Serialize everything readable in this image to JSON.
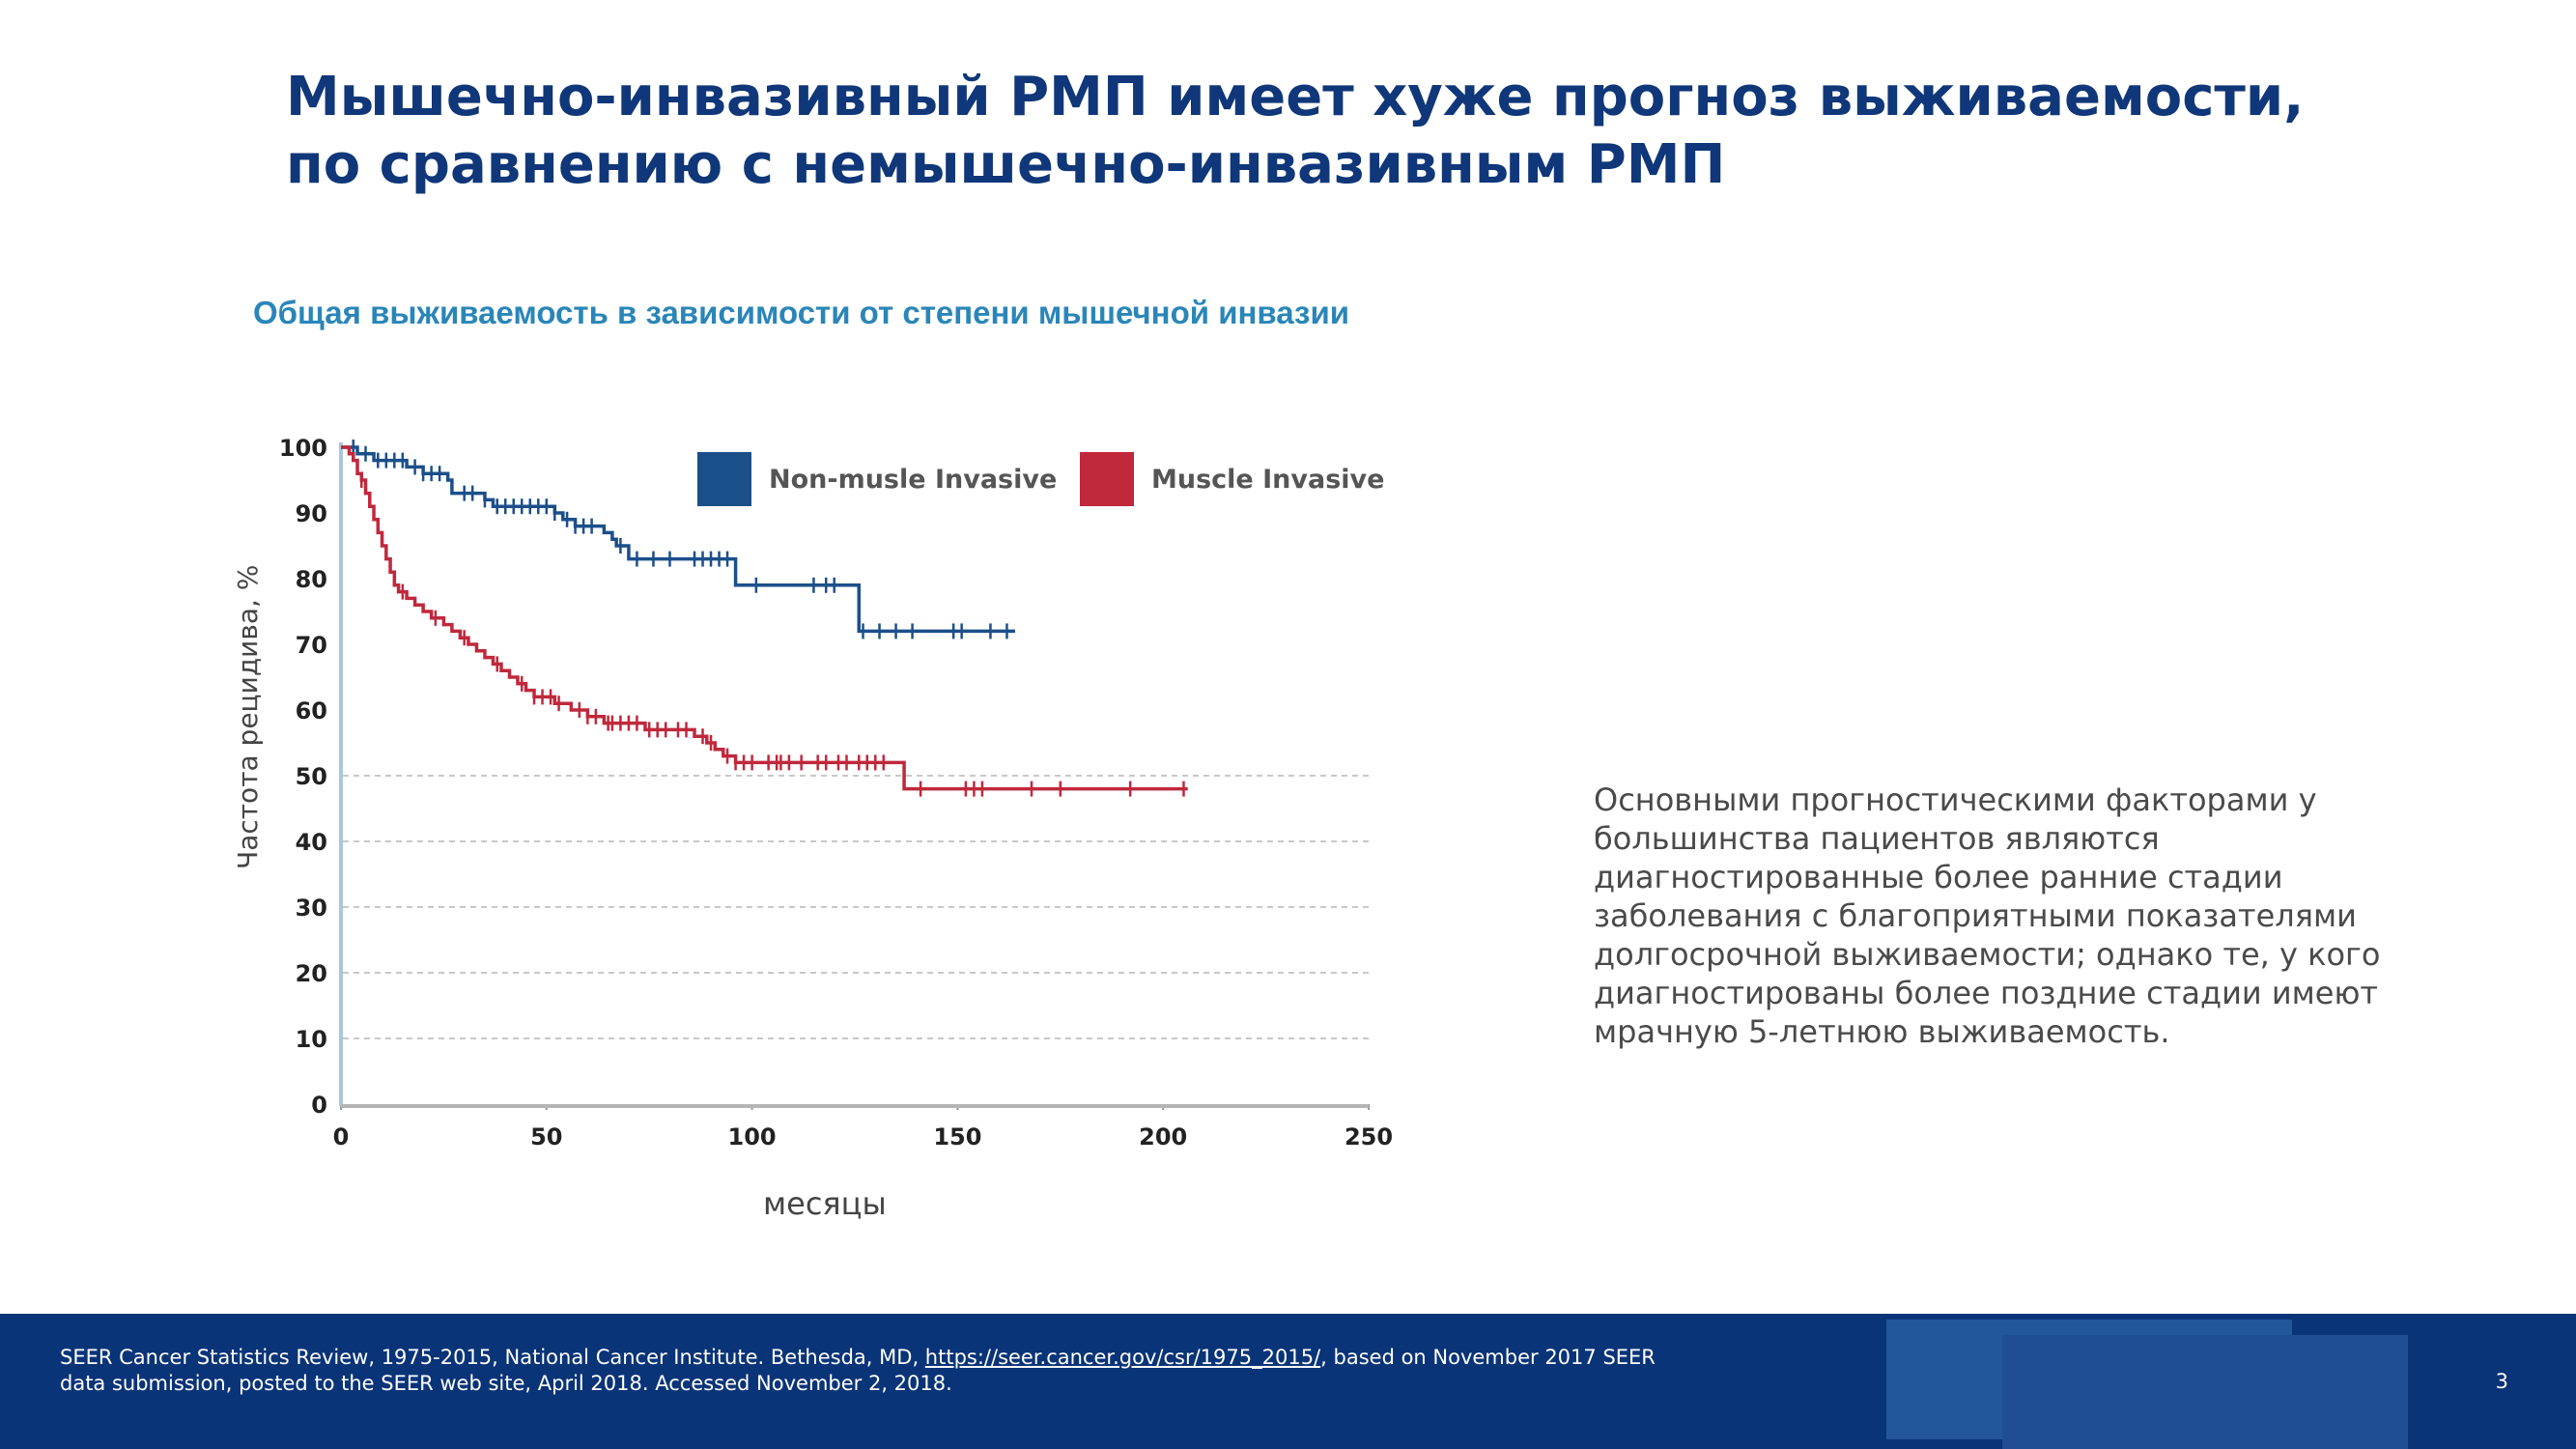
{
  "slide": {
    "title_lines": [
      "Мышечно-инвазивный РМП имеет хуже прогноз выживаемости,",
      "по сравнению с немышечно-инвазивным РМП"
    ],
    "side_text": "Основными прогностическими факторами у большинства пациентов являются диагностированные более ранние стадии заболевания с благоприятными показателями долгосрочной выживаемости; однако те, у кого диагностированы более поздние стадии имеют мрачную 5-летнюю выживаемость.",
    "footnote_pre": "SEER Cancer Statistics Review, 1975-2015, National Cancer Institute. Bethesda, MD, ",
    "footnote_link": "https://seer.cancer.gov/csr/1975_2015/",
    "footnote_post": ", based on November 2017 SEER data submission, posted to the SEER web site, April 2018. Accessed November 2, 2018.",
    "page_number": "3",
    "colors": {
      "title": "#0f3779",
      "chart_title": "#2a86b8",
      "footer": "#0a3478"
    }
  },
  "chart_data": {
    "type": "line",
    "title": "Общая выживаемость в зависимости от степени мышечной инвазии",
    "xlabel": "месяцы",
    "ylabel": "Частота рецидива, %",
    "xlim": [
      0,
      250
    ],
    "ylim": [
      0,
      100
    ],
    "x_ticks": [
      "0",
      "50",
      "100",
      "150",
      "200",
      "250"
    ],
    "y_ticks": [
      "0",
      "10",
      "20",
      "30",
      "40",
      "50",
      "60",
      "70",
      "80",
      "90",
      "100"
    ],
    "grid": "horizontal dashed",
    "legend_position": "top-right",
    "series": [
      {
        "name": "Non-musle Invasive",
        "color": "#1b4f8a",
        "steps": [
          [
            0,
            100
          ],
          [
            4,
            99
          ],
          [
            8,
            98
          ],
          [
            16,
            97
          ],
          [
            20,
            96
          ],
          [
            26,
            95
          ],
          [
            27,
            93
          ],
          [
            35,
            92
          ],
          [
            37,
            91
          ],
          [
            52,
            90
          ],
          [
            54,
            89
          ],
          [
            57,
            88
          ],
          [
            64,
            87
          ],
          [
            66,
            86
          ],
          [
            67,
            85
          ],
          [
            70,
            83
          ],
          [
            96,
            81
          ],
          [
            96,
            79
          ],
          [
            125,
            79
          ],
          [
            126,
            72
          ],
          [
            164,
            72
          ]
        ],
        "censored": [
          3,
          6,
          9,
          11,
          13,
          15,
          18,
          20,
          22,
          24,
          30,
          32,
          35,
          38,
          40,
          42,
          44,
          46,
          48,
          50,
          52,
          55,
          57,
          59,
          61,
          68,
          72,
          76,
          80,
          86,
          88,
          90,
          92,
          94,
          101,
          115,
          118,
          120,
          127,
          131,
          135,
          139,
          149,
          151,
          158,
          162
        ]
      },
      {
        "name": "Muscle Invasive",
        "color": "#c0283c",
        "steps": [
          [
            0,
            100
          ],
          [
            2,
            99
          ],
          [
            3,
            98
          ],
          [
            4,
            96
          ],
          [
            5,
            95
          ],
          [
            6,
            93
          ],
          [
            7,
            91
          ],
          [
            8,
            89
          ],
          [
            9,
            87
          ],
          [
            10,
            85
          ],
          [
            11,
            83
          ],
          [
            12,
            81
          ],
          [
            13,
            79
          ],
          [
            14,
            78
          ],
          [
            16,
            77
          ],
          [
            18,
            76
          ],
          [
            20,
            75
          ],
          [
            22,
            74
          ],
          [
            25,
            73
          ],
          [
            27,
            72
          ],
          [
            29,
            71
          ],
          [
            31,
            70
          ],
          [
            33,
            69
          ],
          [
            35,
            68
          ],
          [
            37,
            67
          ],
          [
            39,
            66
          ],
          [
            41,
            65
          ],
          [
            43,
            64
          ],
          [
            45,
            63
          ],
          [
            47,
            62
          ],
          [
            52,
            61
          ],
          [
            56,
            60
          ],
          [
            60,
            59
          ],
          [
            64,
            58
          ],
          [
            74,
            57
          ],
          [
            86,
            56
          ],
          [
            89,
            55
          ],
          [
            91,
            54
          ],
          [
            93,
            53
          ],
          [
            96,
            52
          ],
          [
            135,
            52
          ],
          [
            137,
            48
          ],
          [
            206,
            48
          ]
        ],
        "censored": [
          5,
          15,
          23,
          30,
          38,
          44,
          47,
          49,
          51,
          53,
          58,
          60,
          62,
          65,
          66,
          68,
          70,
          72,
          75,
          77,
          79,
          82,
          84,
          88,
          90,
          94,
          96,
          98,
          100,
          104,
          106,
          107,
          109,
          112,
          116,
          118,
          121,
          123,
          126,
          128,
          130,
          132,
          141,
          152,
          154,
          156,
          168,
          175,
          192,
          205
        ]
      }
    ]
  }
}
